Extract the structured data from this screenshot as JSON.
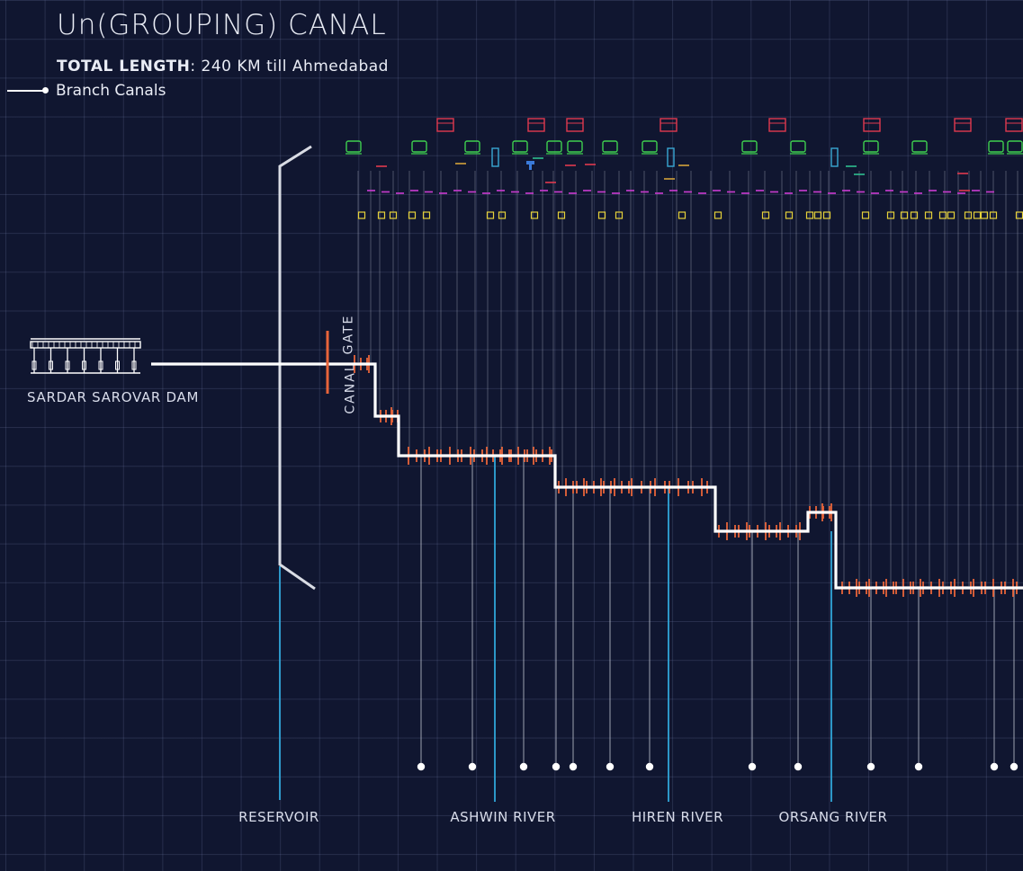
{
  "header": {
    "title": "Un(GROUPING) CANAL",
    "length_label": "TOTAL LENGTH",
    "length_value": ": 240 KM till Ahmedabad"
  },
  "legend": {
    "branch_canals": "Branch Canals"
  },
  "dam": {
    "label": "SARDAR SAROVAR DAM"
  },
  "gate": {
    "word1": "CANAL",
    "word2": "GATE"
  },
  "rivers": [
    {
      "name": "RESERVOIR"
    },
    {
      "name": "ASHWIN RIVER"
    },
    {
      "name": "HIREN RIVER"
    },
    {
      "name": "ORSANG RIVER"
    }
  ],
  "colors": {
    "background": "#101630",
    "canal": "#ffffff",
    "offtake": "#e8643a",
    "river": "#2fa6d9",
    "branch": "#c9cdd8",
    "factory": "#e0394f",
    "vehicle": "#3fcf4f",
    "silo": "#39a7d4",
    "settlement": "#c23ac9",
    "village": "#e6d23a"
  }
}
